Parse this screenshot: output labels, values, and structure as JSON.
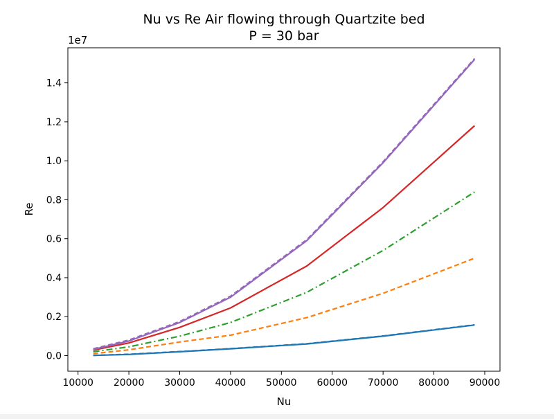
{
  "chart_data": {
    "type": "line",
    "title": "Nu vs Re Air flowing through Quartzite bed",
    "subtitle": "P = 30 bar",
    "xlabel": "Nu",
    "ylabel": "Re",
    "y_offset_label": "1e7",
    "xlim": [
      8000,
      93000
    ],
    "ylim": [
      -800000,
      15800000
    ],
    "x_ticks": [
      10000,
      20000,
      30000,
      40000,
      50000,
      60000,
      70000,
      80000,
      90000
    ],
    "x_tick_labels": [
      "10000",
      "20000",
      "30000",
      "40000",
      "50000",
      "60000",
      "70000",
      "80000",
      "90000"
    ],
    "y_ticks": [
      0,
      2000000,
      4000000,
      6000000,
      8000000,
      10000000,
      12000000,
      14000000
    ],
    "y_tick_labels": [
      "0.0",
      "0.2",
      "0.4",
      "0.6",
      "0.8",
      "1.0",
      "1.2",
      "1.4"
    ],
    "grid": false,
    "legend": false,
    "series": [
      {
        "color": "#1f77b4",
        "line_style": "solid",
        "points": [
          [
            13000,
            10000
          ],
          [
            20000,
            60000
          ],
          [
            30000,
            200000
          ],
          [
            40000,
            350000
          ],
          [
            55000,
            600000
          ],
          [
            70000,
            1000000
          ],
          [
            88000,
            1570000
          ]
        ]
      },
      {
        "color": "#1f77b4",
        "line_style": "dashed",
        "points": [
          [
            13000,
            15000
          ],
          [
            20000,
            70000
          ],
          [
            30000,
            210000
          ],
          [
            40000,
            360000
          ],
          [
            55000,
            610000
          ],
          [
            70000,
            1010000
          ],
          [
            88000,
            1580000
          ]
        ]
      },
      {
        "color": "#ff7f0e",
        "line_style": "dashed",
        "points": [
          [
            13000,
            100000
          ],
          [
            20000,
            300000
          ],
          [
            30000,
            700000
          ],
          [
            40000,
            1050000
          ],
          [
            55000,
            1950000
          ],
          [
            70000,
            3200000
          ],
          [
            88000,
            5000000
          ]
        ]
      },
      {
        "color": "#2ca02c",
        "line_style": "dashdot",
        "points": [
          [
            13000,
            200000
          ],
          [
            20000,
            450000
          ],
          [
            30000,
            1000000
          ],
          [
            40000,
            1700000
          ],
          [
            55000,
            3250000
          ],
          [
            70000,
            5400000
          ],
          [
            88000,
            8400000
          ]
        ]
      },
      {
        "color": "#d62728",
        "line_style": "solid",
        "points": [
          [
            13000,
            280000
          ],
          [
            20000,
            650000
          ],
          [
            30000,
            1450000
          ],
          [
            40000,
            2450000
          ],
          [
            55000,
            4600000
          ],
          [
            70000,
            7600000
          ],
          [
            88000,
            11800000
          ]
        ]
      },
      {
        "color": "#9467bd",
        "line_style": "solid",
        "points": [
          [
            13000,
            320000
          ],
          [
            20000,
            750000
          ],
          [
            30000,
            1700000
          ],
          [
            40000,
            3000000
          ],
          [
            55000,
            5900000
          ],
          [
            70000,
            9900000
          ],
          [
            88000,
            15200000
          ]
        ]
      },
      {
        "color": "#9467bd",
        "line_style": "dashed",
        "points": [
          [
            13000,
            350000
          ],
          [
            20000,
            800000
          ],
          [
            30000,
            1750000
          ],
          [
            40000,
            3050000
          ],
          [
            55000,
            5950000
          ],
          [
            70000,
            9950000
          ],
          [
            88000,
            15250000
          ]
        ]
      }
    ]
  }
}
